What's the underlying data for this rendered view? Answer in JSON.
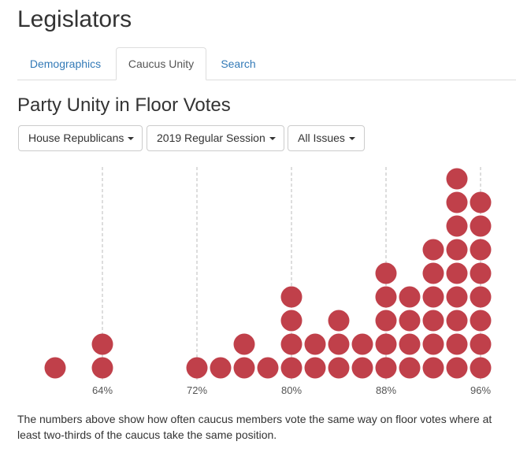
{
  "app": {
    "title": "Legislators"
  },
  "tabs": [
    {
      "label": "Demographics",
      "active": false
    },
    {
      "label": "Caucus Unity",
      "active": true
    },
    {
      "label": "Search",
      "active": false
    }
  ],
  "section": {
    "title": "Party Unity in Floor Votes"
  },
  "filters": {
    "caucus": "House Republicans",
    "session": "2019 Regular Session",
    "issues": "All Issues"
  },
  "colors": {
    "dot": "#c0404a",
    "gridline": "#bbbbbb",
    "link": "#337ab7"
  },
  "chart_data": {
    "type": "scatter",
    "subtype": "dot-plot histogram",
    "x_unit": "percent party unity",
    "xlim": [
      60,
      97
    ],
    "x_ticks": [
      64,
      72,
      80,
      88,
      96
    ],
    "tick_labels": [
      "64%",
      "72%",
      "80%",
      "88%",
      "96%"
    ],
    "grid": "vertical dashed at ticks",
    "bins": [
      {
        "x": 60,
        "count": 1
      },
      {
        "x": 64,
        "count": 2
      },
      {
        "x": 72,
        "count": 1
      },
      {
        "x": 74,
        "count": 1
      },
      {
        "x": 76,
        "count": 2
      },
      {
        "x": 78,
        "count": 1
      },
      {
        "x": 80,
        "count": 4
      },
      {
        "x": 82,
        "count": 2
      },
      {
        "x": 84,
        "count": 3
      },
      {
        "x": 86,
        "count": 2
      },
      {
        "x": 88,
        "count": 5
      },
      {
        "x": 90,
        "count": 4
      },
      {
        "x": 92,
        "count": 6
      },
      {
        "x": 94,
        "count": 9
      },
      {
        "x": 96,
        "count": 8
      }
    ]
  },
  "footnote": "The numbers above show how often caucus members vote the same way on floor votes where at least two-thirds of the caucus take the same position."
}
